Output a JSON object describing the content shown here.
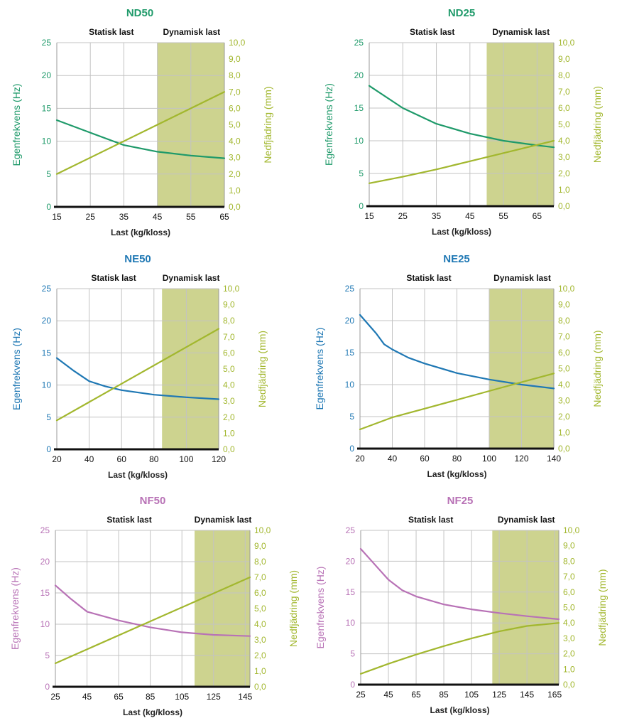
{
  "colors": {
    "green_primary": "#1f9a6a",
    "blue_primary": "#1f78b4",
    "purple_primary": "#b872b6",
    "olive": "#a2b72e",
    "dynamic_fill": "#cdd38f",
    "grid": "#c3c3c3",
    "axis": "#111111"
  },
  "chart_data": [
    {
      "type": "line",
      "title": "ND50",
      "title_color": "#1f9a6a",
      "zone_labels": [
        "Statisk last",
        "Dynamisk last"
      ],
      "dynamic_zone": [
        45,
        65
      ],
      "xlabel": "Last (kg/kloss)",
      "ylabel_left": "Egenfrekvens (Hz)",
      "ylabel_right": "Nedfjädring (mm)",
      "xlim": [
        15,
        65
      ],
      "x_ticks": [
        15,
        25,
        35,
        45,
        55,
        65
      ],
      "ylim_left": [
        0,
        25
      ],
      "y_ticks_left": [
        0,
        5,
        10,
        15,
        20,
        25
      ],
      "ylim_right": [
        0,
        10
      ],
      "y_ticks_right": [
        "0,0",
        "1,0",
        "2,0",
        "3,0",
        "4,0",
        "5,0",
        "6,0",
        "7,0",
        "8,0",
        "9,0",
        "10,0"
      ],
      "series": [
        {
          "axis": "left",
          "color": "#1f9a6a",
          "x": [
            15,
            25,
            35,
            45,
            55,
            65
          ],
          "y": [
            13.2,
            11.3,
            9.4,
            8.4,
            7.8,
            7.4
          ]
        },
        {
          "axis": "right",
          "color": "#a2b72e",
          "x": [
            15,
            65
          ],
          "y": [
            2.0,
            7.0
          ]
        }
      ]
    },
    {
      "type": "line",
      "title": "ND25",
      "title_color": "#1f9a6a",
      "zone_labels": [
        "Statisk last",
        "Dynamisk last"
      ],
      "dynamic_zone": [
        50,
        70
      ],
      "xlabel": "Last (kg/kloss)",
      "ylabel_left": "Egenfrekvens (Hz)",
      "ylabel_right": "Nedfjädring (mm)",
      "xlim": [
        15,
        70
      ],
      "x_ticks": [
        15,
        25,
        35,
        45,
        55,
        65
      ],
      "ylim_left": [
        0,
        25
      ],
      "y_ticks_left": [
        0,
        5,
        10,
        15,
        20,
        25
      ],
      "ylim_right": [
        0,
        10
      ],
      "y_ticks_right": [
        "0,0",
        "1,0",
        "2,0",
        "3,0",
        "4,0",
        "5,0",
        "6,0",
        "7,0",
        "8,0",
        "9,0",
        "10,0"
      ],
      "series": [
        {
          "axis": "left",
          "color": "#1f9a6a",
          "x": [
            15,
            25,
            35,
            45,
            55,
            65,
            70
          ],
          "y": [
            18.4,
            15.0,
            12.6,
            11.1,
            10.0,
            9.3,
            9.0
          ]
        },
        {
          "axis": "right",
          "color": "#a2b72e",
          "x": [
            15,
            25,
            35,
            45,
            55,
            65,
            70
          ],
          "y": [
            1.4,
            1.8,
            2.25,
            2.75,
            3.25,
            3.75,
            4.0
          ]
        }
      ]
    },
    {
      "type": "line",
      "title": "NE50",
      "title_color": "#1f78b4",
      "zone_labels": [
        "Statisk last",
        "Dynamisk last"
      ],
      "dynamic_zone": [
        85,
        120
      ],
      "xlabel": "Last (kg/kloss)",
      "ylabel_left": "Egenfrekvens (Hz)",
      "ylabel_right": "Nedfjädring (mm)",
      "xlim": [
        20,
        120
      ],
      "x_ticks": [
        20,
        40,
        60,
        80,
        100,
        120
      ],
      "ylim_left": [
        0,
        25
      ],
      "y_ticks_left": [
        0,
        5,
        10,
        15,
        20,
        25
      ],
      "ylim_right": [
        0,
        10
      ],
      "y_ticks_right": [
        "0,0",
        "1,0",
        "2,0",
        "3,0",
        "4,0",
        "5,0",
        "6,0",
        "7,0",
        "8,0",
        "9,0",
        "10,0"
      ],
      "series": [
        {
          "axis": "left",
          "color": "#1f78b4",
          "x": [
            20,
            30,
            40,
            50,
            60,
            80,
            100,
            120
          ],
          "y": [
            14.2,
            12.3,
            10.6,
            9.8,
            9.2,
            8.5,
            8.1,
            7.8
          ]
        },
        {
          "axis": "right",
          "color": "#a2b72e",
          "x": [
            20,
            120
          ],
          "y": [
            1.8,
            7.5
          ]
        }
      ]
    },
    {
      "type": "line",
      "title": "NE25",
      "title_color": "#1f78b4",
      "zone_labels": [
        "Statisk last",
        "Dynamisk last"
      ],
      "dynamic_zone": [
        100,
        140
      ],
      "xlabel": "Last (kg/kloss)",
      "ylabel_left": "Egenfrekvens (Hz)",
      "ylabel_right": "Nedfjädring (mm)",
      "xlim": [
        20,
        140
      ],
      "x_ticks": [
        20,
        40,
        60,
        80,
        100,
        120,
        140
      ],
      "ylim_left": [
        0,
        25
      ],
      "y_ticks_left": [
        0,
        5,
        10,
        15,
        20,
        25
      ],
      "ylim_right": [
        0,
        10
      ],
      "y_ticks_right": [
        "0,0",
        "1,0",
        "2,0",
        "3,0",
        "4,0",
        "5,0",
        "6,0",
        "7,0",
        "8,0",
        "9,0",
        "10,0"
      ],
      "series": [
        {
          "axis": "left",
          "color": "#1f78b4",
          "x": [
            20,
            30,
            35,
            40,
            50,
            60,
            80,
            100,
            120,
            140
          ],
          "y": [
            20.9,
            18.0,
            16.3,
            15.5,
            14.2,
            13.3,
            11.8,
            10.8,
            10.0,
            9.4
          ]
        },
        {
          "axis": "right",
          "color": "#a2b72e",
          "x": [
            20,
            40,
            60,
            80,
            100,
            120,
            140
          ],
          "y": [
            1.2,
            1.95,
            2.5,
            3.05,
            3.6,
            4.15,
            4.7
          ]
        }
      ]
    },
    {
      "type": "line",
      "title": "NF50",
      "title_color": "#b872b6",
      "zone_labels": [
        "Statisk last",
        "Dynamisk last"
      ],
      "dynamic_zone": [
        113,
        148
      ],
      "xlabel": "Last (kg/kloss)",
      "ylabel_left": "Egenfrekvens (Hz)",
      "ylabel_right": "Nedfjädring (mm)",
      "xlim": [
        25,
        148
      ],
      "x_ticks": [
        25,
        45,
        65,
        85,
        105,
        125,
        145
      ],
      "ylim_left": [
        0,
        25
      ],
      "y_ticks_left": [
        0,
        5,
        10,
        15,
        20,
        25
      ],
      "ylim_right": [
        0,
        10
      ],
      "y_ticks_right": [
        "0,0",
        "1,0",
        "2,0",
        "3,0",
        "4,0",
        "5,0",
        "6,0",
        "7,0",
        "8,0",
        "9,0",
        "10,0"
      ],
      "series": [
        {
          "axis": "left",
          "color": "#b872b6",
          "x": [
            25,
            35,
            45,
            65,
            85,
            105,
            125,
            148
          ],
          "y": [
            16.2,
            14.0,
            12.0,
            10.6,
            9.5,
            8.7,
            8.3,
            8.1
          ]
        },
        {
          "axis": "right",
          "color": "#a2b72e",
          "x": [
            25,
            148
          ],
          "y": [
            1.5,
            7.0
          ]
        }
      ]
    },
    {
      "type": "line",
      "title": "NF25",
      "title_color": "#b872b6",
      "zone_labels": [
        "Statisk last",
        "Dynamisk last"
      ],
      "dynamic_zone": [
        120,
        168
      ],
      "xlabel": "Last (kg/kloss)",
      "ylabel_left": "Egenfrekvens (Hz)",
      "ylabel_right": "Nedfjädring (mm)",
      "xlim": [
        25,
        168
      ],
      "x_ticks": [
        25,
        45,
        65,
        85,
        105,
        125,
        145,
        165
      ],
      "ylim_left": [
        0,
        25
      ],
      "y_ticks_left": [
        0,
        5,
        10,
        15,
        20,
        25
      ],
      "ylim_right": [
        0,
        10
      ],
      "y_ticks_right": [
        "0,0",
        "1,0",
        "2,0",
        "3,0",
        "4,0",
        "5,0",
        "6,0",
        "7,0",
        "8,0",
        "9,0",
        "10,0"
      ],
      "series": [
        {
          "axis": "left",
          "color": "#b872b6",
          "x": [
            25,
            35,
            45,
            55,
            65,
            85,
            105,
            125,
            145,
            168
          ],
          "y": [
            22.0,
            19.5,
            17.0,
            15.3,
            14.3,
            13.0,
            12.2,
            11.6,
            11.1,
            10.6
          ]
        },
        {
          "axis": "right",
          "color": "#a2b72e",
          "x": [
            25,
            45,
            65,
            85,
            105,
            125,
            145,
            168
          ],
          "y": [
            0.7,
            1.35,
            1.95,
            2.5,
            3.0,
            3.45,
            3.8,
            4.0
          ]
        }
      ]
    }
  ]
}
